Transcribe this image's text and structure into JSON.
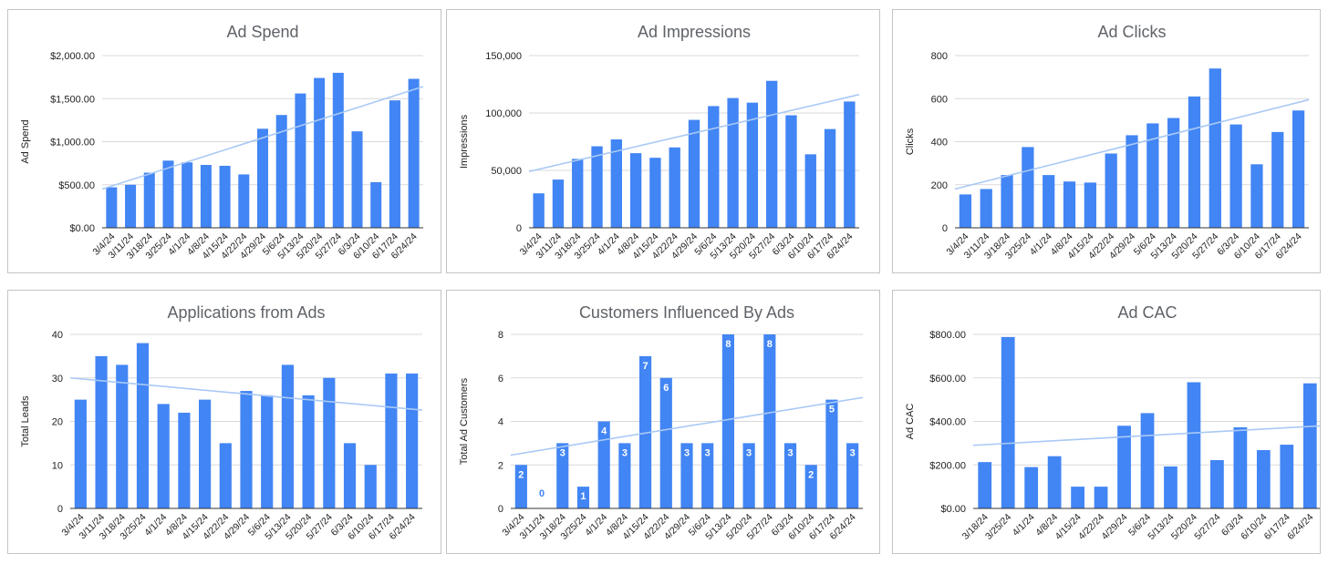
{
  "colors": {
    "bar": "#4285f4",
    "trend": "#a9c9f5",
    "grid": "#d9d9d9",
    "axis": "#333333",
    "label_on_bar": "#ffffff",
    "label_zero": "#4285f4"
  },
  "chart_data": [
    {
      "type": "bar",
      "title": "Ad Spend",
      "ylabel": "Ad Spend",
      "xlabel": "",
      "format": "currency",
      "ylim": [
        0,
        2000
      ],
      "yticks": [
        "$0.00",
        "$500.00",
        "$1,000.00",
        "$1,500.00",
        "$2,000.00"
      ],
      "categories": [
        "3/4/24",
        "3/11/24",
        "3/18/24",
        "3/25/24",
        "4/1/24",
        "4/8/24",
        "4/15/24",
        "4/22/24",
        "4/29/24",
        "5/6/24",
        "5/13/24",
        "5/20/24",
        "5/27/24",
        "6/3/24",
        "6/10/24",
        "6/17/24",
        "6/24/24"
      ],
      "values": [
        470,
        500,
        640,
        780,
        760,
        730,
        720,
        620,
        1150,
        1310,
        1560,
        1740,
        1800,
        1120,
        530,
        1480,
        1730
      ],
      "trendline": [
        450,
        1640
      ]
    },
    {
      "type": "bar",
      "title": "Ad Impressions",
      "ylabel": "Impressions",
      "xlabel": "",
      "format": "number",
      "ylim": [
        0,
        150000
      ],
      "yticks": [
        "0",
        "50,000",
        "100,000",
        "150,000"
      ],
      "categories": [
        "3/4/24",
        "3/11/24",
        "3/18/24",
        "3/25/24",
        "4/1/24",
        "4/8/24",
        "4/15/24",
        "4/22/24",
        "4/29/24",
        "5/6/24",
        "5/13/24",
        "5/20/24",
        "5/27/24",
        "6/3/24",
        "6/10/24",
        "6/17/24",
        "6/24/24"
      ],
      "values": [
        30000,
        42000,
        60000,
        71000,
        77000,
        65000,
        61000,
        70000,
        94000,
        106000,
        113000,
        109000,
        128000,
        98000,
        64000,
        86000,
        110000
      ],
      "trendline": [
        49000,
        116000
      ]
    },
    {
      "type": "bar",
      "title": "Ad Clicks",
      "ylabel": "Clicks",
      "xlabel": "",
      "format": "number",
      "ylim": [
        0,
        800
      ],
      "yticks": [
        "0",
        "200",
        "400",
        "600",
        "800"
      ],
      "categories": [
        "3/4/24",
        "3/11/24",
        "3/18/24",
        "3/25/24",
        "4/1/24",
        "4/8/24",
        "4/15/24",
        "4/22/24",
        "4/29/24",
        "5/6/24",
        "5/13/24",
        "5/20/24",
        "5/27/24",
        "6/3/24",
        "6/10/24",
        "6/17/24",
        "6/24/24"
      ],
      "values": [
        155,
        180,
        245,
        375,
        245,
        215,
        210,
        345,
        430,
        485,
        510,
        610,
        740,
        480,
        295,
        445,
        545
      ],
      "trendline": [
        180,
        595
      ]
    },
    {
      "type": "bar",
      "title": "Applications from Ads",
      "ylabel": "Total Leads",
      "xlabel": "",
      "format": "number",
      "ylim": [
        0,
        40
      ],
      "yticks": [
        "0",
        "10",
        "20",
        "30",
        "40"
      ],
      "categories": [
        "3/4/24",
        "3/11/24",
        "3/18/24",
        "3/25/24",
        "4/1/24",
        "4/8/24",
        "4/15/24",
        "4/22/24",
        "4/29/24",
        "5/6/24",
        "5/13/24",
        "5/20/24",
        "5/27/24",
        "6/3/24",
        "6/10/24",
        "6/17/24",
        "6/24/24"
      ],
      "values": [
        25,
        35,
        33,
        38,
        24,
        22,
        25,
        15,
        27,
        26,
        33,
        26,
        30,
        15,
        10,
        31,
        31
      ],
      "trendline": [
        30,
        22.6
      ]
    },
    {
      "type": "bar",
      "title": "Customers Influenced By Ads",
      "ylabel": "Total Ad Customers",
      "xlabel": "",
      "format": "number",
      "ylim": [
        0,
        8
      ],
      "yticks": [
        "0",
        "2",
        "4",
        "6",
        "8"
      ],
      "categories": [
        "3/4/24",
        "3/11/24",
        "3/18/24",
        "3/25/24",
        "4/1/24",
        "4/8/24",
        "4/15/24",
        "4/22/24",
        "4/29/24",
        "5/6/24",
        "5/13/24",
        "5/20/24",
        "5/27/24",
        "6/3/24",
        "6/10/24",
        "6/17/24",
        "6/24/24"
      ],
      "values": [
        2,
        0,
        3,
        1,
        4,
        3,
        7,
        6,
        3,
        3,
        8,
        3,
        8,
        3,
        2,
        5,
        3
      ],
      "data_labels": [
        "2",
        "0",
        "3",
        "1",
        "4",
        "3",
        "7",
        "6",
        "3",
        "3",
        "8",
        "3",
        "8",
        "3",
        "2",
        "5",
        "3"
      ],
      "trendline": [
        2.45,
        5.1
      ]
    },
    {
      "type": "bar",
      "title": "Ad CAC",
      "ylabel": "Ad CAC",
      "xlabel": "",
      "format": "currency",
      "ylim": [
        0,
        800
      ],
      "yticks": [
        "$0.00",
        "$200.00",
        "$400.00",
        "$600.00",
        "$800.00"
      ],
      "categories": [
        "3/18/24",
        "3/25/24",
        "4/1/24",
        "4/8/24",
        "4/15/24",
        "4/22/24",
        "4/29/24",
        "5/6/24",
        "5/13/24",
        "5/20/24",
        "5/27/24",
        "6/3/24",
        "6/10/24",
        "6/17/24",
        "6/24/24"
      ],
      "values": [
        213,
        788,
        190,
        240,
        100,
        100,
        380,
        438,
        193,
        580,
        222,
        373,
        268,
        293,
        575
      ],
      "trendline": [
        290,
        380
      ]
    }
  ]
}
